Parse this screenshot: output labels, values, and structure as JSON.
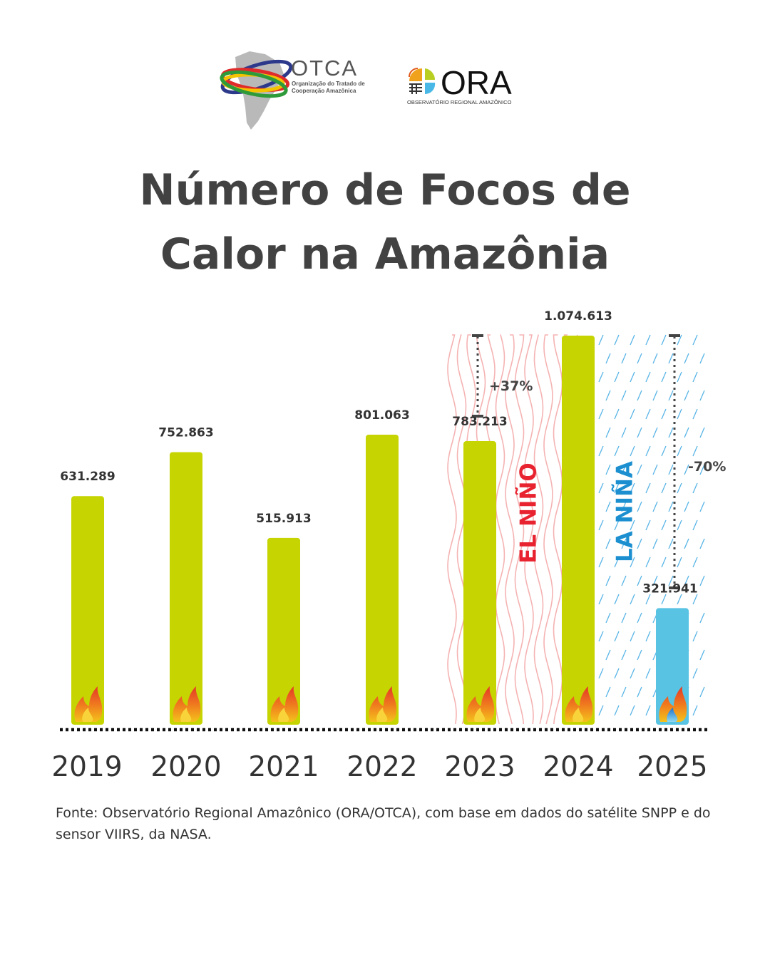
{
  "logos": {
    "otca": {
      "name": "OTCA",
      "subtitle_line1": "Organização do Tratado de",
      "subtitle_line2": "Cooperação Amazônica"
    },
    "ora": {
      "name": "ORA",
      "subtitle": "OBSERVATÓRIO REGIONAL AMAZÔNICO"
    }
  },
  "title_lines": [
    "Número de Focos de",
    "Calor na Amazônia"
  ],
  "chart_data": {
    "type": "bar",
    "categories": [
      "2019",
      "2020",
      "2021",
      "2022",
      "2023",
      "2024",
      "2025"
    ],
    "values": [
      631289,
      752863,
      515913,
      801063,
      783213,
      1074613,
      321941
    ],
    "value_labels": [
      "631.289",
      "752.863",
      "515.913",
      "801.063",
      "783.213",
      "1.074.613",
      "321.941"
    ],
    "ylim": [
      0,
      1074613
    ],
    "grid": false,
    "colors": {
      "bar": "#c6d401",
      "bar_highlight": "#58c3e3",
      "el_nino": "#e8232f",
      "la_nina": "#1b8fd0",
      "value_label": "#333333",
      "year_label": "#333333"
    },
    "highlight_index": 6,
    "annotations": {
      "increase": {
        "from": "2023",
        "to": "2024",
        "label": "+37%"
      },
      "decrease": {
        "from": "2024",
        "to": "2025",
        "label": "-70%"
      },
      "el_nino": {
        "label": "EL NIÑO",
        "period": "2023-2024"
      },
      "la_nina": {
        "label": "LA NIÑA",
        "period": "2024-2025"
      }
    }
  },
  "source": "Fonte: Observatório Regional Amazônico (ORA/OTCA), com base em dados do satélite SNPP e do sensor VIIRS, da NASA."
}
